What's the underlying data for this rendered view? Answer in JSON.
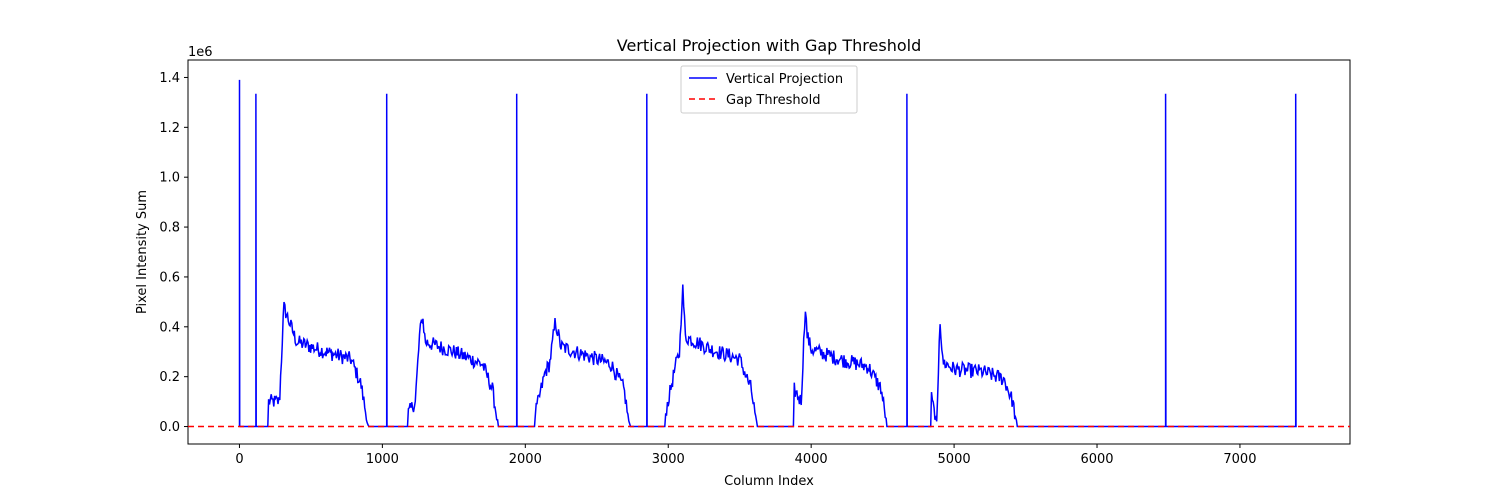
{
  "chart_data": {
    "type": "line",
    "title": "Vertical Projection with Gap Threshold",
    "xlabel": "Column Index",
    "ylabel": "Pixel Intensity Sum",
    "y_offset_text": "1e6",
    "xlim": [
      -360,
      7770
    ],
    "ylim": [
      -0.07,
      1.47
    ],
    "x_ticks": [
      0,
      1000,
      2000,
      3000,
      4000,
      5000,
      6000,
      7000
    ],
    "x_tick_labels": [
      "0",
      "1000",
      "2000",
      "3000",
      "4000",
      "5000",
      "6000",
      "7000"
    ],
    "y_ticks": [
      0.0,
      0.2,
      0.4,
      0.6,
      0.8,
      1.0,
      1.2,
      1.4
    ],
    "y_tick_labels": [
      "0.0",
      "0.2",
      "0.4",
      "0.6",
      "0.8",
      "1.0",
      "1.2",
      "1.4"
    ],
    "legend_position": "upper center",
    "series": [
      {
        "name": "Vertical Projection",
        "color": "#0000ff",
        "style": "solid",
        "spikes": [
          {
            "x": 0,
            "y": 1.39
          },
          {
            "x": 115,
            "y": 1.335
          },
          {
            "x": 1030,
            "y": 1.335
          },
          {
            "x": 1940,
            "y": 1.335
          },
          {
            "x": 2850,
            "y": 1.335
          },
          {
            "x": 4670,
            "y": 1.335
          },
          {
            "x": 6480,
            "y": 1.335
          },
          {
            "x": 7390,
            "y": 1.335
          }
        ],
        "segments": [
          {
            "x": [
              200,
              280,
              300,
              310,
              400,
              600,
              780,
              850,
              900
            ],
            "y": [
              0.1,
              0.1,
              0.35,
              0.48,
              0.34,
              0.3,
              0.27,
              0.17,
              0.0
            ]
          },
          {
            "x": [
              1180,
              1230,
              1260,
              1280,
              1300,
              1500,
              1700,
              1770,
              1810
            ],
            "y": [
              0.05,
              0.1,
              0.36,
              0.45,
              0.34,
              0.3,
              0.25,
              0.15,
              0.0
            ]
          },
          {
            "x": [
              2070,
              2140,
              2170,
              2210,
              2250,
              2400,
              2600,
              2690,
              2730
            ],
            "y": [
              0.05,
              0.22,
              0.25,
              0.42,
              0.32,
              0.29,
              0.25,
              0.15,
              0.0
            ]
          },
          {
            "x": [
              2980,
              3050,
              3080,
              3100,
              3120,
              3300,
              3500,
              3580,
              3620
            ],
            "y": [
              0.05,
              0.24,
              0.3,
              0.57,
              0.36,
              0.31,
              0.27,
              0.15,
              0.0
            ]
          },
          {
            "x": [
              3880,
              3930,
              3960,
              3970,
              4000,
              4200,
              4400,
              4490,
              4530
            ],
            "y": [
              0.15,
              0.1,
              0.49,
              0.37,
              0.31,
              0.27,
              0.24,
              0.15,
              0.0
            ]
          },
          {
            "x": [
              4840,
              4880,
              4900,
              4920,
              5000,
              5200,
              5350,
              5410,
              5440
            ],
            "y": [
              0.12,
              0.0,
              0.45,
              0.26,
              0.23,
              0.22,
              0.19,
              0.1,
              0.0
            ]
          }
        ]
      },
      {
        "name": "Gap Threshold",
        "color": "#ff0000",
        "style": "dashed",
        "y": 0.0
      }
    ]
  }
}
